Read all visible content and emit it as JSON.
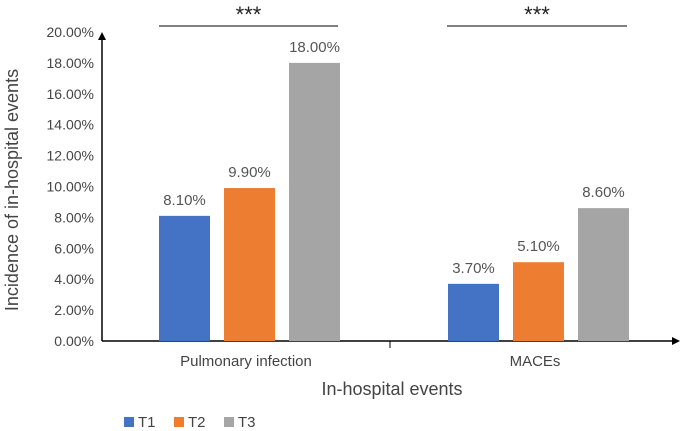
{
  "chart_data": {
    "type": "bar",
    "title": "",
    "xlabel": "In-hospital events",
    "ylabel": "Incidence of in-hospital events",
    "categories": [
      "Pulmonary infection",
      "MACEs"
    ],
    "series": [
      {
        "name": "T1",
        "values": [
          8.1,
          3.7
        ],
        "labels": [
          "8.10%",
          "3.70%"
        ],
        "color": "#4472C4"
      },
      {
        "name": "T2",
        "values": [
          9.9,
          5.1
        ],
        "labels": [
          "9.90%",
          "5.10%"
        ],
        "color": "#ED7D31"
      },
      {
        "name": "T3",
        "values": [
          18.0,
          8.6
        ],
        "labels": [
          "18.00%",
          "8.60%"
        ],
        "color": "#A5A5A5"
      }
    ],
    "ylim": [
      0,
      20
    ],
    "yticks": [
      0,
      2,
      4,
      6,
      8,
      10,
      12,
      14,
      16,
      18,
      20
    ],
    "ytick_labels": [
      "0.00%",
      "2.00%",
      "4.00%",
      "6.00%",
      "8.00%",
      "10.00%",
      "12.00%",
      "14.00%",
      "16.00%",
      "18.00%",
      "20.00%"
    ],
    "significance": [
      "***",
      "***"
    ],
    "grid": false,
    "legend_position": "bottom-left"
  }
}
